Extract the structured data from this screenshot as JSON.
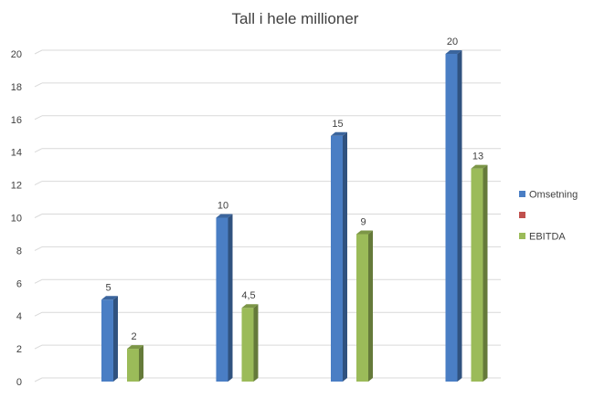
{
  "chart_data": {
    "type": "bar",
    "title": "Tall i hele millioner",
    "categories": [
      "",
      "",
      "",
      ""
    ],
    "series": [
      {
        "name": "Omsetning",
        "values": [
          5,
          10,
          15,
          20
        ],
        "labels": [
          "5",
          "10",
          "15",
          "20"
        ],
        "color": "#4a7ec4"
      },
      {
        "name": "",
        "values": [
          null,
          null,
          null,
          null
        ],
        "labels": [
          "",
          "",
          "",
          ""
        ],
        "color": "#c0504d"
      },
      {
        "name": "EBITDA",
        "values": [
          2,
          4.5,
          9,
          13
        ],
        "labels": [
          "2",
          "4,5",
          "9",
          "13"
        ],
        "color": "#9bbb59"
      }
    ],
    "ylim": [
      0,
      20
    ],
    "yticks": [
      "0",
      "2",
      "4",
      "6",
      "8",
      "10",
      "12",
      "14",
      "16",
      "18",
      "20"
    ],
    "grid": true,
    "legend": "right"
  }
}
